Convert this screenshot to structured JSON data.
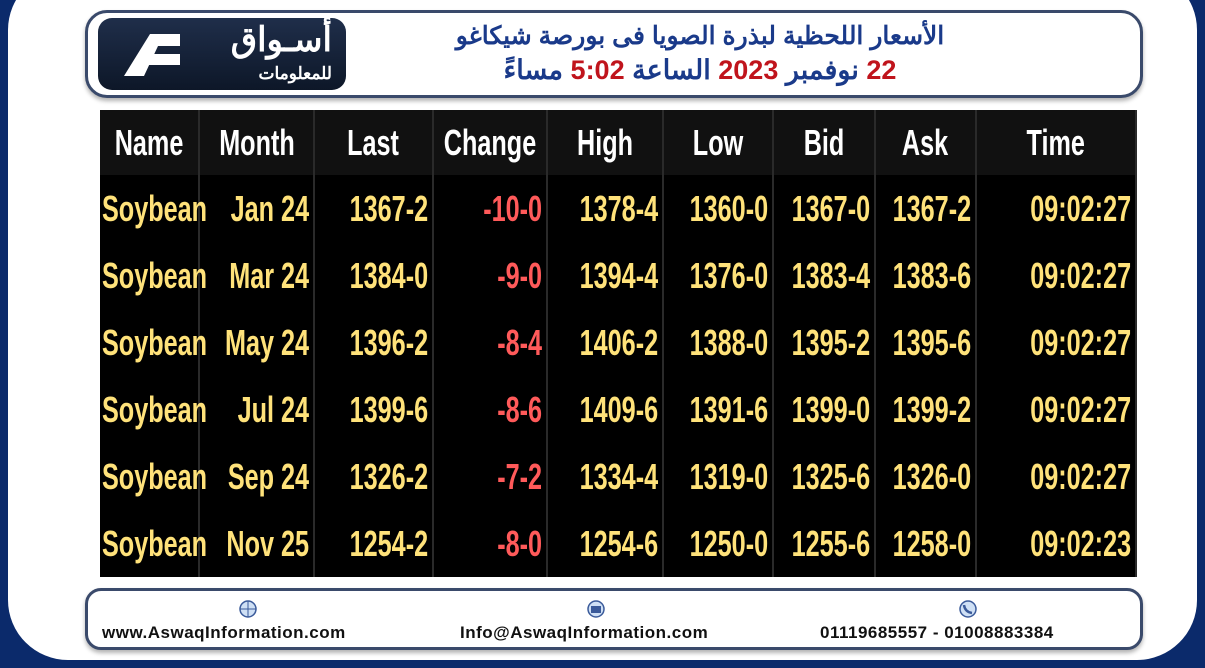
{
  "header": {
    "logo_main": "أسـواق",
    "logo_sub": "للمعلومات",
    "title_line1": "الأسعار اللحظية لبذرة الصويا فى بورصة شيكاغو",
    "title_line2": [
      {
        "text": "22",
        "color": "#c0141c"
      },
      {
        "text": "نوفمبر",
        "color": "#1a3a8a"
      },
      {
        "text": "2023",
        "color": "#c0141c"
      },
      {
        "text": "الساعة",
        "color": "#1a3a8a"
      },
      {
        "text": "5:02",
        "color": "#c0141c"
      },
      {
        "text": "مساءً",
        "color": "#1a3a8a"
      }
    ]
  },
  "table": {
    "columns": [
      "Name",
      "Month",
      "Last",
      "Change",
      "High",
      "Low",
      "Bid",
      "Ask",
      "Time"
    ],
    "rows": [
      [
        "Soybean",
        "Jan 24",
        "1367-2",
        "-10-0",
        "1378-4",
        "1360-0",
        "1367-0",
        "1367-2",
        "09:02:27"
      ],
      [
        "Soybean",
        "Mar 24",
        "1384-0",
        "-9-0",
        "1394-4",
        "1376-0",
        "1383-4",
        "1383-6",
        "09:02:27"
      ],
      [
        "Soybean",
        "May 24",
        "1396-2",
        "-8-4",
        "1406-2",
        "1388-0",
        "1395-2",
        "1395-6",
        "09:02:27"
      ],
      [
        "Soybean",
        "Jul 24",
        "1399-6",
        "-8-6",
        "1409-6",
        "1391-6",
        "1399-0",
        "1399-2",
        "09:02:27"
      ],
      [
        "Soybean",
        "Sep 24",
        "1326-2",
        "-7-2",
        "1334-4",
        "1319-0",
        "1325-6",
        "1326-0",
        "09:02:27"
      ],
      [
        "Soybean",
        "Nov 25",
        "1254-2",
        "-8-0",
        "1254-6",
        "1250-0",
        "1255-6",
        "1258-0",
        "09:02:23"
      ]
    ]
  },
  "footer": {
    "website": "www.AswaqInformation.com",
    "email": "Info@AswaqInformation.com",
    "phone": "01119685557 - 01008883384"
  }
}
